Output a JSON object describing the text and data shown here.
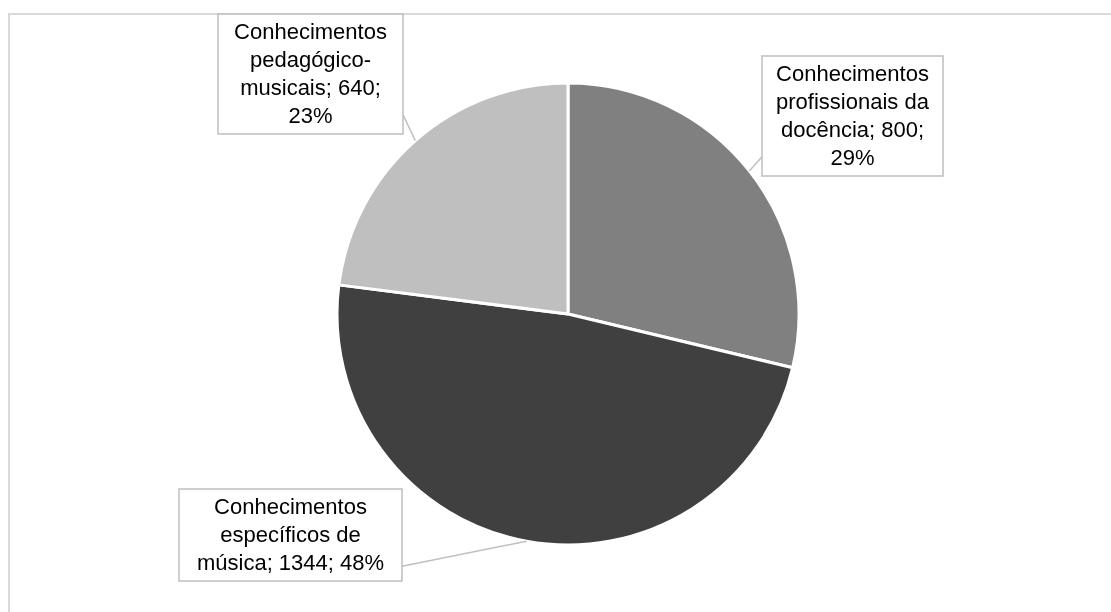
{
  "chart_data": {
    "type": "pie",
    "categories": [
      "Conhecimentos profissionais da docência",
      "Conhecimentos específicos de música",
      "Conhecimentos pedagógico-musicais"
    ],
    "values": [
      800,
      1344,
      640
    ],
    "colors": [
      "#808080",
      "#404040",
      "#bfbfbf"
    ],
    "value_labels": [
      "800; 29%",
      "1344; 48%",
      "640; 23%"
    ]
  }
}
